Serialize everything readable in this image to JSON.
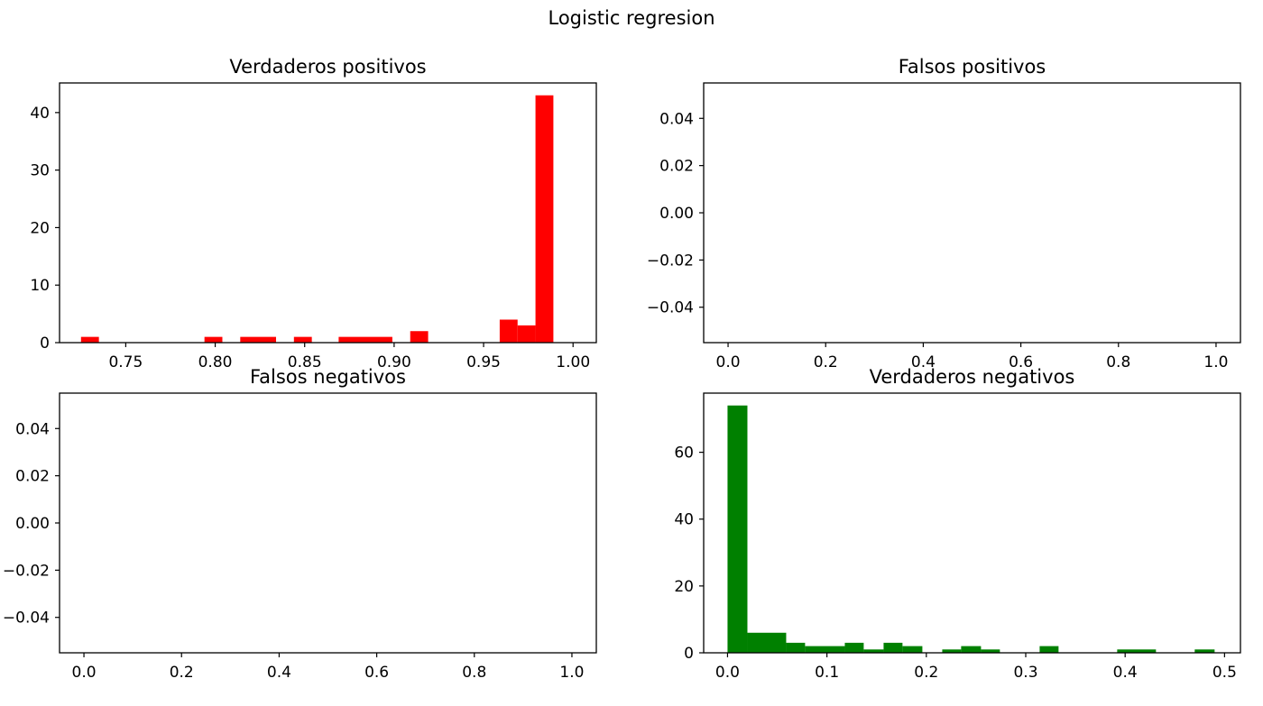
{
  "figure": {
    "title": "Logistic regresion"
  },
  "chart_data": [
    {
      "type": "bar",
      "title": "Verdaderos positivos",
      "xlabel": "",
      "ylabel": "",
      "color": "#ff0000",
      "xlim": [
        0.713,
        1.013
      ],
      "ylim": [
        0,
        45.15
      ],
      "xticks": [
        0.75,
        0.8,
        0.85,
        0.9,
        0.95,
        1.0
      ],
      "xtick_labels": [
        "0.75",
        "0.80",
        "0.85",
        "0.90",
        "0.95",
        "1.00"
      ],
      "yticks": [
        0,
        10,
        20,
        30,
        40
      ],
      "ytick_labels": [
        "0",
        "10",
        "20",
        "30",
        "40"
      ],
      "bins": [
        {
          "x0": 0.725,
          "x1": 0.735,
          "count": 1
        },
        {
          "x0": 0.794,
          "x1": 0.804,
          "count": 1
        },
        {
          "x0": 0.814,
          "x1": 0.834,
          "count": 1
        },
        {
          "x0": 0.844,
          "x1": 0.854,
          "count": 1
        },
        {
          "x0": 0.869,
          "x1": 0.899,
          "count": 1
        },
        {
          "x0": 0.909,
          "x1": 0.919,
          "count": 2
        },
        {
          "x0": 0.959,
          "x1": 0.969,
          "count": 4
        },
        {
          "x0": 0.969,
          "x1": 0.979,
          "count": 3
        },
        {
          "x0": 0.979,
          "x1": 0.989,
          "count": 43
        }
      ]
    },
    {
      "type": "bar",
      "title": "Falsos positivos",
      "xlabel": "",
      "ylabel": "",
      "color": "#ff0000",
      "xlim": [
        -0.05,
        1.05
      ],
      "ylim": [
        -0.055,
        0.055
      ],
      "xticks": [
        0.0,
        0.2,
        0.4,
        0.6,
        0.8,
        1.0
      ],
      "xtick_labels": [
        "0.0",
        "0.2",
        "0.4",
        "0.6",
        "0.8",
        "1.0"
      ],
      "yticks": [
        -0.04,
        -0.02,
        0.0,
        0.02,
        0.04
      ],
      "ytick_labels": [
        "−0.04",
        "−0.02",
        "0.00",
        "0.02",
        "0.04"
      ],
      "bins": []
    },
    {
      "type": "bar",
      "title": "Falsos negativos",
      "xlabel": "",
      "ylabel": "",
      "color": "#008000",
      "xlim": [
        -0.05,
        1.05
      ],
      "ylim": [
        -0.055,
        0.055
      ],
      "xticks": [
        0.0,
        0.2,
        0.4,
        0.6,
        0.8,
        1.0
      ],
      "xtick_labels": [
        "0.0",
        "0.2",
        "0.4",
        "0.6",
        "0.8",
        "1.0"
      ],
      "yticks": [
        -0.04,
        -0.02,
        0.0,
        0.02,
        0.04
      ],
      "ytick_labels": [
        "−0.04",
        "−0.02",
        "0.00",
        "0.02",
        "0.04"
      ],
      "bins": []
    },
    {
      "type": "bar",
      "title": "Verdaderos negativos",
      "xlabel": "",
      "ylabel": "",
      "color": "#008000",
      "xlim": [
        -0.024,
        0.516
      ],
      "ylim": [
        0,
        77.7
      ],
      "xticks": [
        0.0,
        0.1,
        0.2,
        0.3,
        0.4,
        0.5
      ],
      "xtick_labels": [
        "0.0",
        "0.1",
        "0.2",
        "0.3",
        "0.4",
        "0.5"
      ],
      "yticks": [
        0,
        20,
        40,
        60
      ],
      "ytick_labels": [
        "0",
        "20",
        "40",
        "60"
      ],
      "bins": [
        {
          "x0": 0.0,
          "x1": 0.02,
          "count": 74
        },
        {
          "x0": 0.02,
          "x1": 0.059,
          "count": 6
        },
        {
          "x0": 0.059,
          "x1": 0.078,
          "count": 3
        },
        {
          "x0": 0.078,
          "x1": 0.118,
          "count": 2
        },
        {
          "x0": 0.118,
          "x1": 0.137,
          "count": 3
        },
        {
          "x0": 0.137,
          "x1": 0.157,
          "count": 1
        },
        {
          "x0": 0.157,
          "x1": 0.176,
          "count": 3
        },
        {
          "x0": 0.176,
          "x1": 0.196,
          "count": 2
        },
        {
          "x0": 0.216,
          "x1": 0.235,
          "count": 1
        },
        {
          "x0": 0.235,
          "x1": 0.255,
          "count": 2
        },
        {
          "x0": 0.255,
          "x1": 0.274,
          "count": 1
        },
        {
          "x0": 0.314,
          "x1": 0.333,
          "count": 2
        },
        {
          "x0": 0.392,
          "x1": 0.431,
          "count": 1
        },
        {
          "x0": 0.47,
          "x1": 0.49,
          "count": 1
        }
      ]
    }
  ]
}
